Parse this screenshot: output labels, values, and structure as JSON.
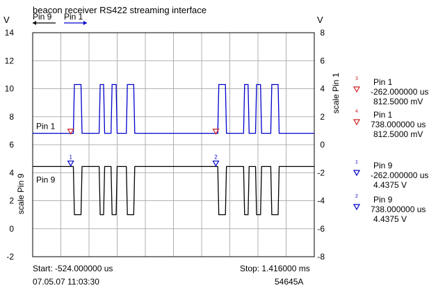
{
  "title": "beacon receiver RS422 streaming interface",
  "legend": [
    {
      "label": "Pin 9",
      "arrow": "left",
      "color": "#000000"
    },
    {
      "label": "Pin 1",
      "arrow": "right",
      "color": "#0000cc"
    }
  ],
  "left_axis": {
    "unit": "V",
    "label": "scale Pin 9",
    "ticks": [
      "14",
      "12",
      "10",
      "8",
      "6",
      "4",
      "2",
      "0",
      "-2"
    ],
    "range": [
      -2,
      14
    ]
  },
  "right_axis": {
    "unit": "V",
    "label": "scale Pin 1",
    "ticks": [
      "8",
      "6",
      "4",
      "2",
      "0",
      "-2",
      "-4",
      "-6",
      "-8"
    ],
    "range": [
      -8,
      8
    ]
  },
  "trace_labels": {
    "pin1": "Pin 1",
    "pin9": "Pin 9"
  },
  "markers": [
    {
      "id": "3",
      "channel": "Pin 1",
      "time": "-262.000000 us",
      "value": "812.5000 mV",
      "color": "#cc2222"
    },
    {
      "id": "4",
      "channel": "Pin 1",
      "time": "738.000000 us",
      "value": "812.5000 mV",
      "color": "#cc2222"
    },
    {
      "id": "1",
      "channel": "Pin 9",
      "time": "-262.000000 us",
      "value": "4.4375 V",
      "color": "#0000cc"
    },
    {
      "id": "2",
      "channel": "Pin 9",
      "time": "738.000000 us",
      "value": "4.4375 V",
      "color": "#0000cc"
    }
  ],
  "start": "Start: -524.000000 us",
  "stop": "Stop: 1.416000 ms",
  "timestamp": "07.05.07 11:03:30",
  "model": "54645A",
  "chart_data": {
    "type": "line",
    "title": "beacon receiver RS422 streaming interface",
    "x_range_us": [
      -524,
      1416
    ],
    "ylabel_left": "scale Pin 9",
    "ylabel_right": "scale Pin 1",
    "ylim_left": [
      -2,
      14
    ],
    "ylim_right": [
      -8,
      8
    ],
    "grid": true,
    "series": [
      {
        "name": "Pin 1",
        "color": "#0000cc",
        "axis": "right",
        "low": 0.8125,
        "high": 4.3,
        "high_intervals_us": [
          [
            -244,
            -184
          ],
          [
            -66,
            -28
          ],
          [
            16,
            58
          ],
          [
            121,
            179
          ],
          [
            751,
            811
          ],
          [
            929,
            967
          ],
          [
            1011,
            1053
          ],
          [
            1116,
            1174
          ]
        ]
      },
      {
        "name": "Pin 9",
        "color": "#000000",
        "axis": "left",
        "high": 4.4375,
        "low": 1.0,
        "low_intervals_us": [
          [
            -244,
            -184
          ],
          [
            -66,
            -28
          ],
          [
            16,
            58
          ],
          [
            121,
            179
          ],
          [
            751,
            811
          ],
          [
            929,
            967
          ],
          [
            1011,
            1053
          ],
          [
            1116,
            1174
          ]
        ]
      }
    ]
  }
}
